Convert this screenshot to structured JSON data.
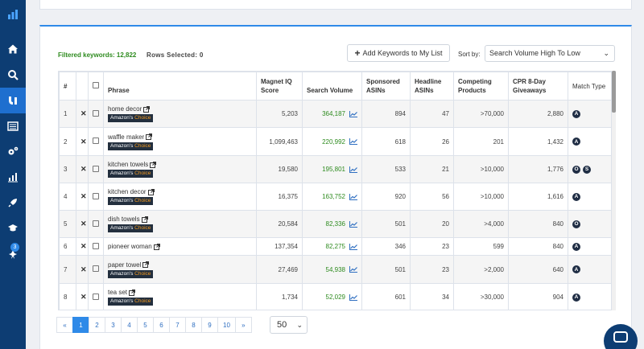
{
  "sidebar": {
    "items": [
      {
        "icon": "logo-bars-icon"
      },
      {
        "icon": "home-icon"
      },
      {
        "icon": "search-icon"
      },
      {
        "icon": "magnet-tools-icon",
        "active": true
      },
      {
        "icon": "list-icon"
      },
      {
        "icon": "settings-gears-icon"
      },
      {
        "icon": "chart-icon"
      },
      {
        "icon": "rocket-icon"
      },
      {
        "icon": "graduation-cap-icon"
      },
      {
        "icon": "notification-bell-icon",
        "badge": "3"
      }
    ]
  },
  "toolbar": {
    "filtered_label": "Filtered keywords: 12,822",
    "rows_selected_label": "Rows Selected: 0",
    "add_button_label": "Add Keywords to My List",
    "sort_label": "Sort by:",
    "sort_value": "Search Volume High To Low"
  },
  "table": {
    "headers": {
      "num": "#",
      "phrase": "Phrase",
      "magnet_iq": "Magnet IQ Score",
      "search_volume": "Search Volume",
      "sponsored": "Sponsored ASINs",
      "headline": "Headline ASINs",
      "competing": "Competing Products",
      "cpr": "CPR 8-Day Giveaways",
      "match": "Match Type"
    },
    "badge_amazons": "Amazon's",
    "badge_choice": "Choice",
    "rows": [
      {
        "num": "1",
        "phrase": "home decor",
        "ac": true,
        "iq": "5,203",
        "volume": "364,187",
        "sponsored": "894",
        "headline": "47",
        "competing": ">70,000",
        "cpr": "2,880",
        "match": [
          "A"
        ]
      },
      {
        "num": "2",
        "phrase": "waffle maker",
        "ac": true,
        "iq": "1,099,463",
        "volume": "220,992",
        "sponsored": "618",
        "headline": "26",
        "competing": "201",
        "cpr": "1,432",
        "match": [
          "A"
        ]
      },
      {
        "num": "3",
        "phrase": "kitchen towels",
        "ac": true,
        "iq": "19,580",
        "volume": "195,801",
        "sponsored": "533",
        "headline": "21",
        "competing": ">10,000",
        "cpr": "1,776",
        "match": [
          "O",
          "S"
        ]
      },
      {
        "num": "4",
        "phrase": "kitchen decor",
        "ac": true,
        "iq": "16,375",
        "volume": "163,752",
        "sponsored": "920",
        "headline": "56",
        "competing": ">10,000",
        "cpr": "1,616",
        "match": [
          "A"
        ]
      },
      {
        "num": "5",
        "phrase": "dish towels",
        "ac": true,
        "iq": "20,584",
        "volume": "82,336",
        "sponsored": "501",
        "headline": "20",
        "competing": ">4,000",
        "cpr": "840",
        "match": [
          "O"
        ]
      },
      {
        "num": "6",
        "phrase": "pioneer woman",
        "ac": false,
        "iq": "137,354",
        "volume": "82,275",
        "sponsored": "346",
        "headline": "23",
        "competing": "599",
        "cpr": "840",
        "match": [
          "A"
        ]
      },
      {
        "num": "7",
        "phrase": "paper towel",
        "ac": true,
        "iq": "27,469",
        "volume": "54,938",
        "sponsored": "501",
        "headline": "23",
        "competing": ">2,000",
        "cpr": "640",
        "match": [
          "A"
        ]
      },
      {
        "num": "8",
        "phrase": "tea set",
        "ac": true,
        "iq": "1,734",
        "volume": "52,029",
        "sponsored": "601",
        "headline": "34",
        "competing": ">30,000",
        "cpr": "904",
        "match": [
          "A"
        ]
      }
    ]
  },
  "pagination": {
    "prev": "«",
    "pages": [
      "1",
      "2",
      "3",
      "4",
      "5",
      "6",
      "7",
      "8",
      "9",
      "10"
    ],
    "current": "1",
    "next": "»",
    "per_page": "50"
  },
  "colors": {
    "sidebar": "#0d3d73",
    "accent": "#2f8ae8",
    "volume_green": "#2e8b1f"
  }
}
